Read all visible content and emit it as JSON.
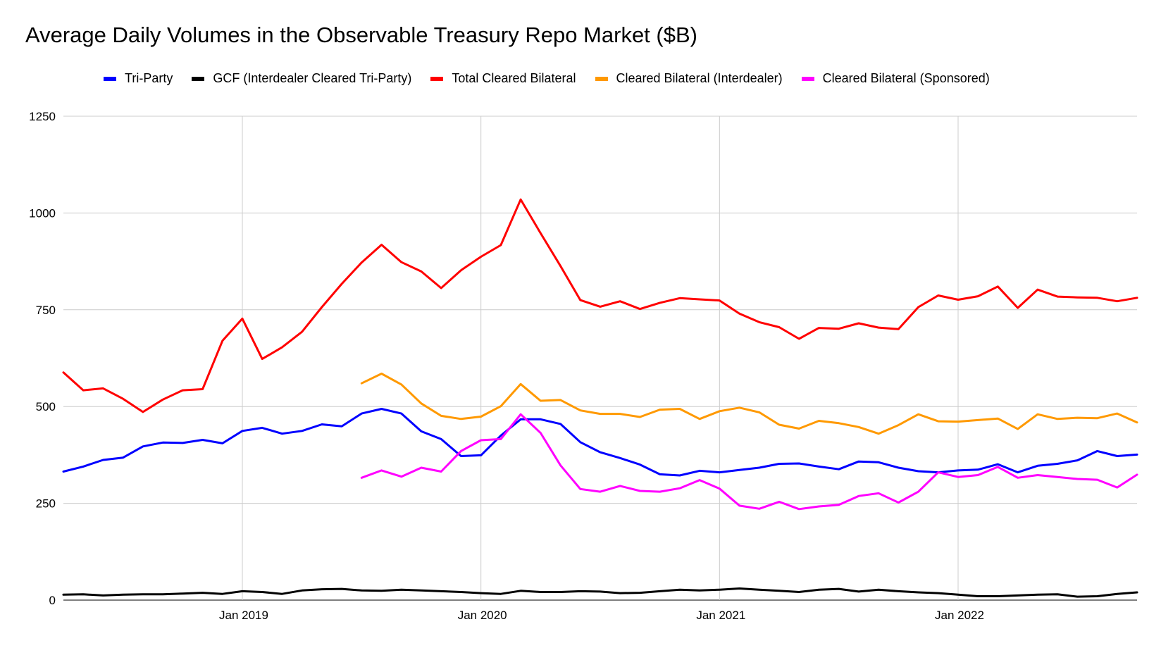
{
  "chart_data": {
    "type": "line",
    "title": "Average Daily Volumes in the Observable Treasury Repo Market ($B)",
    "xlabel": "",
    "ylabel": "",
    "ylim": [
      0,
      1250
    ],
    "yticks": [
      0,
      250,
      500,
      750,
      1000,
      1250
    ],
    "x_start": "Apr 2018",
    "x_end": "Sep 2022",
    "x_tick_labels": [
      "Jan 2019",
      "Jan 2020",
      "Jan 2021",
      "Jan 2022"
    ],
    "x_tick_index": [
      9,
      21,
      33,
      45
    ],
    "grid": true,
    "legend_position": "top",
    "series": [
      {
        "name": "Tri-Party",
        "color": "#0000ff",
        "start_index": 0,
        "values": [
          332,
          345,
          362,
          368,
          397,
          407,
          406,
          414,
          405,
          437,
          445,
          430,
          437,
          454,
          449,
          482,
          494,
          482,
          436,
          416,
          372,
          374,
          425,
          467,
          467,
          455,
          408,
          382,
          367,
          350,
          325,
          322,
          334,
          330,
          336,
          342,
          352,
          353,
          345,
          338,
          358,
          356,
          342,
          333,
          330,
          335,
          337,
          351,
          330,
          347,
          352,
          361,
          385,
          372,
          376
        ]
      },
      {
        "name": "GCF (Interdealer Cleared Tri-Party)",
        "color": "#000000",
        "start_index": 0,
        "values": [
          14,
          15,
          12,
          14,
          15,
          15,
          17,
          19,
          16,
          23,
          21,
          16,
          25,
          28,
          29,
          25,
          24,
          27,
          25,
          23,
          21,
          18,
          16,
          24,
          21,
          21,
          23,
          22,
          18,
          19,
          23,
          27,
          25,
          27,
          30,
          27,
          24,
          21,
          27,
          29,
          22,
          27,
          23,
          20,
          18,
          14,
          10,
          10,
          12,
          14,
          15,
          9,
          10,
          16,
          20
        ]
      },
      {
        "name": "Total Cleared Bilateral",
        "color": "#ff0000",
        "start_index": 0,
        "values": [
          588,
          542,
          547,
          520,
          486,
          518,
          542,
          545,
          670,
          727,
          623,
          653,
          693,
          757,
          817,
          872,
          918,
          873,
          849,
          806,
          852,
          887,
          917,
          1035,
          948,
          863,
          775,
          758,
          772,
          752,
          768,
          780,
          777,
          774,
          740,
          718,
          705,
          675,
          703,
          701,
          715,
          704,
          700,
          757,
          787,
          776,
          785,
          810,
          755,
          802,
          784,
          782,
          781,
          772,
          781
        ]
      },
      {
        "name": "Cleared Bilateral (Interdealer)",
        "color": "#ff9900",
        "start_index": 15,
        "values": [
          560,
          585,
          557,
          508,
          476,
          468,
          474,
          501,
          558,
          515,
          517,
          490,
          481,
          481,
          473,
          492,
          494,
          468,
          488,
          497,
          485,
          453,
          443,
          463,
          457,
          447,
          430,
          452,
          480,
          462,
          461,
          465,
          469,
          442,
          480,
          468,
          471,
          470,
          482,
          459
        ]
      },
      {
        "name": "Cleared Bilateral (Sponsored)",
        "color": "#ff00ff",
        "start_index": 15,
        "values": [
          316,
          335,
          319,
          342,
          332,
          385,
          413,
          416,
          480,
          432,
          348,
          287,
          280,
          295,
          282,
          280,
          289,
          310,
          288,
          244,
          236,
          254,
          235,
          242,
          246,
          269,
          276,
          252,
          280,
          330,
          318,
          323,
          344,
          316,
          323,
          318,
          313,
          311,
          291,
          324
        ]
      }
    ]
  }
}
